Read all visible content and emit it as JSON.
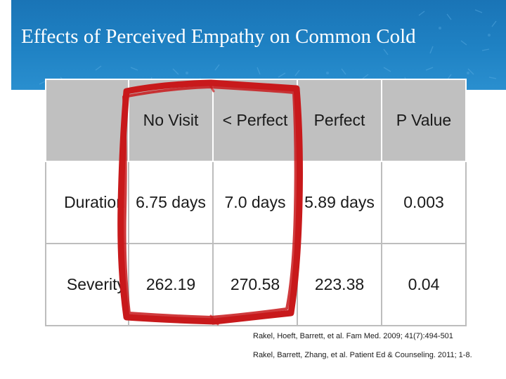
{
  "title": "Effects of Perceived Empathy on Common Cold",
  "table": {
    "headers": [
      "",
      "No Visit",
      "< Perfect",
      "Perfect",
      "P Value"
    ],
    "rows": [
      {
        "label": "Duration",
        "cells": [
          "6.75 days",
          "7.0 days",
          "5.89 days",
          "0.003"
        ]
      },
      {
        "label": "Severity",
        "cells": [
          "262.19",
          "270.58",
          "223.38",
          "0.04"
        ]
      }
    ]
  },
  "citations": [
    "Rakel, Hoeft, Barrett, et al. Fam Med. 2009; 41(7):494-501",
    "Rakel, Barrett, Zhang, et al. Patient Ed & Counseling. 2011; 1-8."
  ],
  "colors": {
    "banner": "#1f82c4",
    "header_row": "#c0c0c0",
    "highlight": "#c8191b"
  }
}
